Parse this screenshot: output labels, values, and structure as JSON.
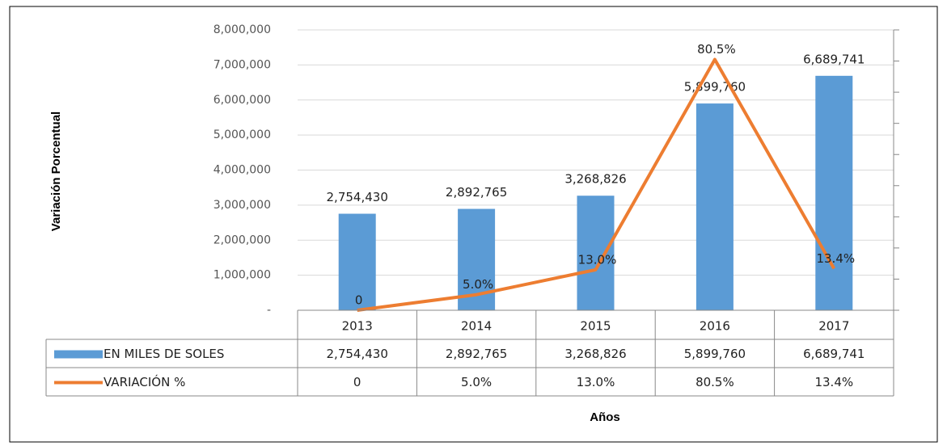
{
  "chart_data": {
    "type": "bar",
    "y_axis_label": "Variación Porcentual",
    "x_axis_label": "Años",
    "categories": [
      "2013",
      "2014",
      "2015",
      "2016",
      "2017"
    ],
    "series": [
      {
        "name": "EN MILES DE SOLES",
        "type": "bar",
        "color": "#5b9bd5",
        "values": [
          2754430,
          2892765,
          3268826,
          5899760,
          6689741
        ],
        "value_labels": [
          "2,754,430",
          "2,892,765",
          "3,268,826",
          "5,899,760",
          "6,689,741"
        ]
      },
      {
        "name": "VARIACIÓN %",
        "type": "line",
        "axis": "y2",
        "color": "#ed7d31",
        "values": [
          0,
          5.0,
          13.0,
          80.5,
          13.4
        ],
        "value_labels": [
          "0",
          "5.0%",
          "13.0%",
          "80.5%",
          "13.4%"
        ]
      }
    ],
    "ylim": [
      0,
      8000000
    ],
    "yticks": [
      {
        "value": 0,
        "label": "-"
      },
      {
        "value": 1000000,
        "label": "1,000,000"
      },
      {
        "value": 2000000,
        "label": "2,000,000"
      },
      {
        "value": 3000000,
        "label": "3,000,000"
      },
      {
        "value": 4000000,
        "label": "4,000,000"
      },
      {
        "value": 5000000,
        "label": "5,000,000"
      },
      {
        "value": 6000000,
        "label": "6,000,000"
      },
      {
        "value": 7000000,
        "label": "7,000,000"
      },
      {
        "value": 8000000,
        "label": "8,000,000"
      }
    ],
    "y2lim": [
      0,
      90
    ],
    "y2ticks": [
      0,
      10,
      20,
      30,
      40,
      50,
      60,
      70,
      80,
      90
    ],
    "grid": true,
    "data_table": true
  }
}
